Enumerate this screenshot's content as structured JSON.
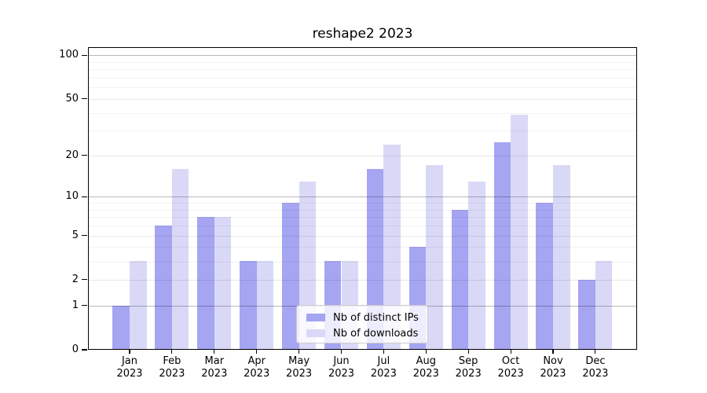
{
  "chart_data": {
    "type": "bar",
    "title": "reshape2 2023",
    "months": [
      "Jan",
      "Feb",
      "Mar",
      "Apr",
      "May",
      "Jun",
      "Jul",
      "Aug",
      "Sep",
      "Oct",
      "Nov",
      "Dec"
    ],
    "year": "2023",
    "series": [
      {
        "name": "Nb of distinct IPs",
        "color": "#a5a5f2",
        "values": [
          1,
          6,
          7,
          3,
          9,
          3,
          16,
          4,
          8,
          25,
          9,
          2
        ]
      },
      {
        "name": "Nb of downloads",
        "color": "#d9d9f7",
        "values": [
          3,
          16,
          7,
          3,
          13,
          3,
          24,
          17,
          13,
          39,
          17,
          3
        ]
      }
    ],
    "yscale": "log10(value+1)",
    "ylim": [
      0,
      113
    ],
    "y_axis": {
      "ticks": [
        0,
        1,
        2,
        5,
        10,
        20,
        50,
        100
      ],
      "decade_gridlines": [
        1,
        10,
        100
      ],
      "sub_gridlines": [
        2,
        5,
        20,
        50
      ],
      "minor_gridlines": [
        3,
        4,
        6,
        7,
        8,
        9,
        30,
        40,
        60,
        70,
        80,
        90
      ]
    },
    "grid": true,
    "legend_position": "inside-bottom-center"
  }
}
